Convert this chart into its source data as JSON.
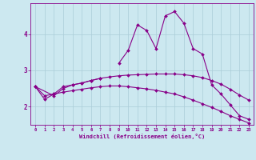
{
  "xlabel": "Windchill (Refroidissement éolien,°C)",
  "x": [
    0,
    1,
    2,
    3,
    4,
    5,
    6,
    7,
    8,
    9,
    10,
    11,
    12,
    13,
    14,
    15,
    16,
    17,
    18,
    19,
    20,
    21,
    22,
    23
  ],
  "line1_x": [
    0,
    1,
    2,
    3,
    4,
    5,
    6,
    7
  ],
  "line1_y": [
    2.55,
    2.2,
    2.35,
    2.55,
    2.6,
    2.65,
    2.72,
    2.78
  ],
  "line2_x": [
    9,
    10,
    11,
    12,
    13,
    14,
    15,
    16,
    17,
    18,
    19,
    20,
    21,
    22,
    23
  ],
  "line2_y": [
    3.2,
    3.55,
    4.25,
    4.1,
    3.6,
    4.5,
    4.62,
    4.3,
    3.6,
    3.45,
    2.6,
    2.35,
    2.05,
    1.75,
    1.65
  ],
  "line3_x": [
    0,
    2,
    3,
    4,
    5,
    6,
    7,
    8,
    9,
    10,
    11,
    12,
    13,
    14,
    15,
    16,
    17,
    18,
    19,
    20,
    21,
    22,
    23
  ],
  "line3_y": [
    2.55,
    2.3,
    2.5,
    2.6,
    2.65,
    2.72,
    2.78,
    2.82,
    2.85,
    2.87,
    2.88,
    2.89,
    2.9,
    2.9,
    2.9,
    2.88,
    2.85,
    2.8,
    2.72,
    2.62,
    2.48,
    2.32,
    2.18
  ],
  "line4_x": [
    0,
    1,
    2,
    3,
    4,
    5,
    6,
    7,
    8,
    9,
    10,
    11,
    12,
    13,
    14,
    15,
    16,
    17,
    18,
    19,
    20,
    21,
    22,
    23
  ],
  "line4_y": [
    2.55,
    2.3,
    2.35,
    2.4,
    2.44,
    2.48,
    2.52,
    2.55,
    2.57,
    2.57,
    2.55,
    2.52,
    2.49,
    2.45,
    2.4,
    2.35,
    2.27,
    2.18,
    2.08,
    1.98,
    1.87,
    1.75,
    1.65,
    1.55
  ],
  "color": "#880088",
  "bg_color": "#cce8f0",
  "grid_color": "#aaccd8",
  "ylim": [
    1.5,
    4.85
  ],
  "yticks": [
    2,
    3,
    4
  ],
  "xlim": [
    -0.5,
    23.5
  ]
}
